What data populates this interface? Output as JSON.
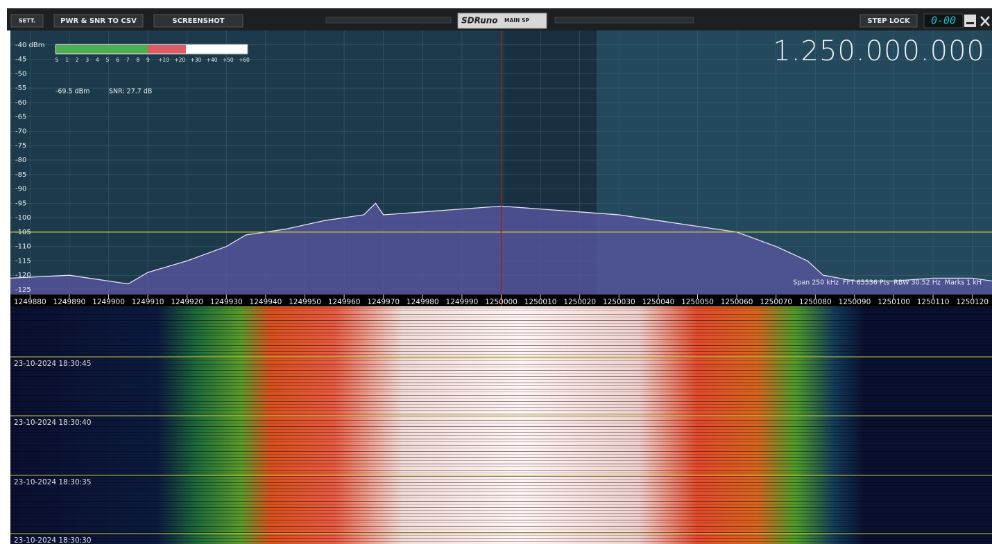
{
  "toolbar": {
    "buttons": [
      "SETT.",
      "PWR & SNR TO CSV",
      "SCREENSHOT"
    ],
    "app": "SDRuno",
    "panel": "MAIN SP",
    "step_lock": "STEP LOCK",
    "step_display": "0-00"
  },
  "frequency_display": "1.250.000.000",
  "s_meter": {
    "scale": [
      "S",
      "1",
      "2",
      "3",
      "4",
      "5",
      "6",
      "7",
      "8",
      "9",
      "+10",
      "+20",
      "+30",
      "+40",
      "+50",
      "+60"
    ],
    "power": "-69.5 dBm",
    "snr": "SNR: 27.7 dB"
  },
  "chart_data": {
    "type": "line",
    "x": [
      1249875,
      1249890,
      1249900,
      1249905,
      1249910,
      1249920,
      1249930,
      1249935,
      1249945,
      1249955,
      1249965,
      1249968,
      1249970,
      1249980,
      1249990,
      1250000,
      1250010,
      1250020,
      1250030,
      1250040,
      1250050,
      1250060,
      1250070,
      1250078,
      1250082,
      1250090,
      1250100,
      1250110,
      1250120,
      1250125
    ],
    "values": [
      -121,
      -120,
      -122,
      -123,
      -119,
      -115,
      -110,
      -106,
      -104,
      -101,
      -99,
      -95,
      -99,
      -98,
      -97,
      -96,
      -97,
      -98,
      -99,
      -101,
      -103,
      -105,
      -110,
      -115,
      -120,
      -122,
      -122,
      -121,
      -121,
      -122
    ],
    "color": "#e4e4f2",
    "fill": "#55539a",
    "xlim": [
      1249875,
      1250125
    ],
    "ylim": [
      -125,
      -35
    ],
    "yticks": [
      {
        "value": -40,
        "label": "-40 dBm"
      },
      -45,
      -50,
      -55,
      -60,
      -65,
      -70,
      -75,
      -80,
      -85,
      -90,
      -95,
      -100,
      -105,
      -110,
      -115,
      -120,
      -125
    ],
    "xticks": [
      1249880,
      1249890,
      1249900,
      1249910,
      1249920,
      1249930,
      1249940,
      1249950,
      1249960,
      1249970,
      1249980,
      1249990,
      1250000,
      1250010,
      1250020,
      1250030,
      1250040,
      1250050,
      1250060,
      1250070,
      1250080,
      1250090,
      1250100,
      1250110,
      1250120
    ],
    "grid": true,
    "center_line": 1250000,
    "threshold": -105,
    "annotation": "Span 250 kHz  FFT 65536 Pts  RBW 30.52 Hz  Marks 1 kH"
  },
  "waterfall": {
    "timestamps": [
      "23-10-2024 18:30:45",
      "23-10-2024 18:30:40",
      "23-10-2024 18:30:35",
      "23-10-2024 18:30:30"
    ]
  }
}
